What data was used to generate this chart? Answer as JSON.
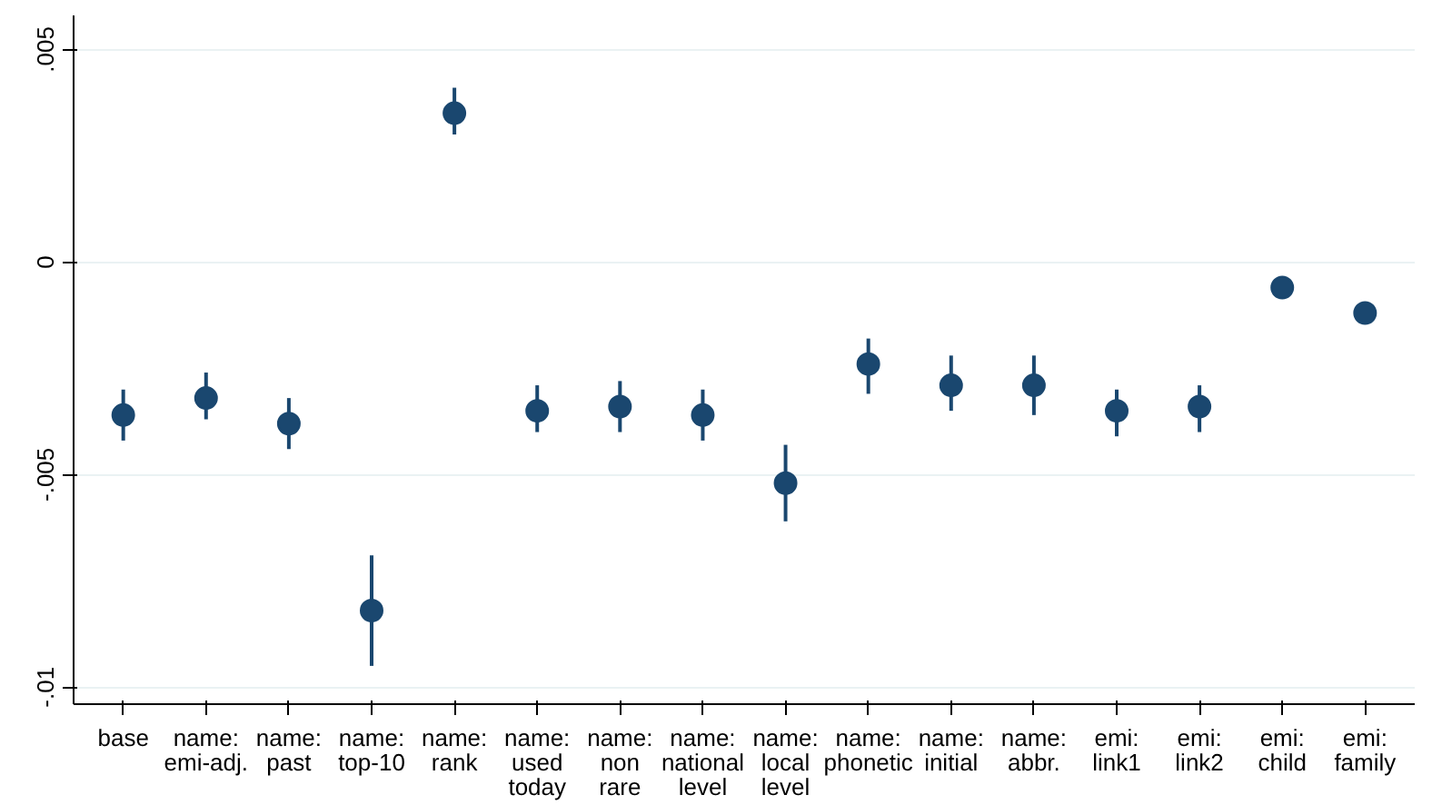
{
  "chart_data": {
    "type": "scatter",
    "categories": [
      "base",
      "name: emi-adj.",
      "name: past",
      "name: top-10",
      "name: rank",
      "name: used today",
      "name: non rare",
      "name: national level",
      "name: local level",
      "name: phonetic",
      "name: initial",
      "name: abbr.",
      "emi: link1",
      "emi: link2",
      "emi: child",
      "emi: family"
    ],
    "series": [
      {
        "color": "#1a476f",
        "values": [
          -0.0036,
          -0.0032,
          -0.0038,
          -0.0082,
          0.0035,
          -0.0035,
          -0.0034,
          -0.0036,
          -0.0052,
          -0.0024,
          -0.0029,
          -0.0029,
          -0.0035,
          -0.0034,
          -0.0006,
          -0.0012
        ],
        "errors": [
          [
            -0.0042,
            -0.003
          ],
          [
            -0.0037,
            -0.0026
          ],
          [
            -0.0044,
            -0.0032
          ],
          [
            -0.0095,
            -0.0069
          ],
          [
            0.003,
            0.0041
          ],
          [
            -0.004,
            -0.0029
          ],
          [
            -0.004,
            -0.0028
          ],
          [
            -0.0042,
            -0.003
          ],
          [
            -0.0061,
            -0.0043
          ],
          [
            -0.0031,
            -0.0018
          ],
          [
            -0.0035,
            -0.0022
          ],
          [
            -0.0036,
            -0.0022
          ],
          [
            -0.0041,
            -0.003
          ],
          [
            -0.004,
            -0.0029
          ],
          null,
          null
        ]
      }
    ],
    "ylim": [
      -0.0104,
      0.0058
    ],
    "yticks": [
      {
        "value": -0.01,
        "label": "-.01"
      },
      {
        "value": -0.005,
        "label": "-.005"
      },
      {
        "value": 0,
        "label": "0"
      },
      {
        "value": 0.005,
        "label": ".005"
      }
    ],
    "grid": "y",
    "marker": "circle"
  }
}
